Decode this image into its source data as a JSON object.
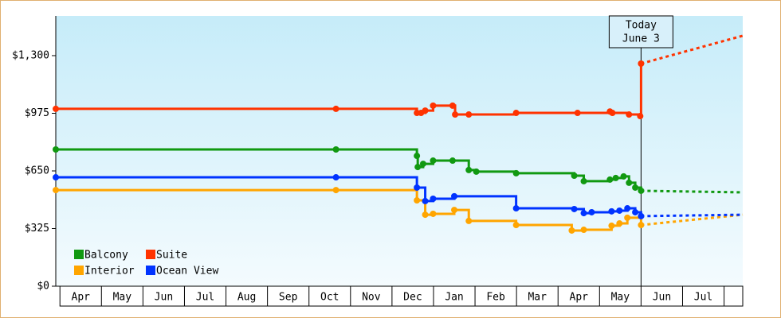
{
  "chart_data": {
    "type": "step-line",
    "xlim": [
      -0.1,
      16.45
    ],
    "ylim": [
      0,
      1524
    ],
    "yticks": [
      {
        "value": 0,
        "label": "$0"
      },
      {
        "value": 325,
        "label": "$325"
      },
      {
        "value": 650,
        "label": "$650"
      },
      {
        "value": 975,
        "label": "$975"
      },
      {
        "value": 1300,
        "label": "$1,300"
      }
    ],
    "xticks": [
      {
        "value": 0.5,
        "label": "Apr"
      },
      {
        "value": 1.5,
        "label": "May"
      },
      {
        "value": 2.5,
        "label": "Jun"
      },
      {
        "value": 3.5,
        "label": "Jul"
      },
      {
        "value": 4.5,
        "label": "Aug"
      },
      {
        "value": 5.5,
        "label": "Sep"
      },
      {
        "value": 6.5,
        "label": "Oct"
      },
      {
        "value": 7.5,
        "label": "Nov"
      },
      {
        "value": 8.5,
        "label": "Dec"
      },
      {
        "value": 9.5,
        "label": "Jan"
      },
      {
        "value": 10.5,
        "label": "Feb"
      },
      {
        "value": 11.5,
        "label": "Mar"
      },
      {
        "value": 12.5,
        "label": "Apr"
      },
      {
        "value": 13.5,
        "label": "May"
      },
      {
        "value": 14.5,
        "label": "Jun"
      },
      {
        "value": 15.5,
        "label": "Jul"
      }
    ],
    "today": {
      "x": 14.0,
      "lines": [
        "Today",
        "June 3"
      ]
    },
    "series": [
      {
        "name": "Balcony",
        "color": "#119911",
        "x": [
          -0.1,
          6.65,
          8.6,
          8.62,
          8.75,
          8.99,
          9.46,
          9.85,
          10.03,
          10.99,
          12.39,
          12.62,
          13.25,
          13.39,
          13.58,
          13.71,
          13.86,
          14.0
        ],
        "values": [
          771,
          771,
          735,
          672,
          690,
          708,
          708,
          655,
          646,
          637,
          623,
          592,
          601,
          610,
          619,
          583,
          556,
          538
        ],
        "forecast": {
          "x": [
            14.0,
            16.45
          ],
          "values": [
            538,
            529
          ]
        }
      },
      {
        "name": "Suite",
        "color": "#ff3300",
        "x": [
          -0.1,
          6.65,
          8.6,
          8.7,
          8.8,
          8.99,
          9.46,
          9.52,
          9.85,
          10.99,
          12.47,
          13.25,
          13.31,
          13.71,
          13.98,
          14.0
        ],
        "values": [
          1000,
          1000,
          977,
          977,
          990,
          1018,
          1018,
          968,
          968,
          977,
          977,
          985,
          977,
          968,
          959,
          1255
        ],
        "forecast": {
          "x": [
            14.0,
            16.45
          ],
          "values": [
            1255,
            1412
          ]
        }
      },
      {
        "name": "Interior",
        "color": "#ffa500",
        "x": [
          -0.1,
          6.65,
          8.6,
          8.8,
          8.99,
          9.5,
          9.85,
          10.99,
          12.33,
          12.62,
          13.29,
          13.48,
          13.67,
          14.0
        ],
        "values": [
          542,
          542,
          484,
          403,
          408,
          430,
          368,
          345,
          314,
          318,
          341,
          354,
          386,
          345
        ],
        "forecast": {
          "x": [
            14.0,
            16.45
          ],
          "values": [
            345,
            403
          ]
        }
      },
      {
        "name": "Ocean View",
        "color": "#0033ff",
        "x": [
          -0.1,
          6.65,
          8.6,
          8.8,
          8.99,
          9.5,
          10.99,
          12.39,
          12.62,
          12.81,
          13.29,
          13.48,
          13.67,
          13.86,
          14.0
        ],
        "values": [
          614,
          614,
          556,
          480,
          493,
          507,
          439,
          435,
          412,
          417,
          422,
          426,
          439,
          417,
          395
        ],
        "forecast": {
          "x": [
            14.0,
            16.45
          ],
          "values": [
            395,
            403
          ]
        }
      }
    ]
  }
}
